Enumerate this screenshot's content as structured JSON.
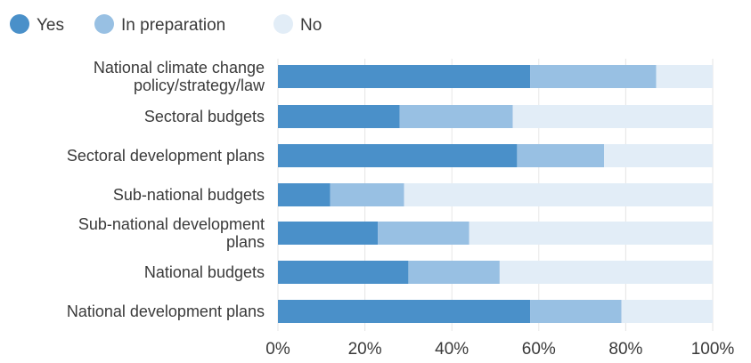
{
  "chart_data": {
    "type": "bar",
    "orientation": "horizontal",
    "stacked": true,
    "categories": [
      [
        "National climate change",
        "policy/strategy/law"
      ],
      [
        "Sectoral budgets"
      ],
      [
        "Sectoral development plans"
      ],
      [
        "Sub-national budgets"
      ],
      [
        "Sub-national development",
        "plans"
      ],
      [
        "National budgets"
      ],
      [
        "National development plans"
      ]
    ],
    "series": [
      {
        "name": "Yes",
        "color": "#4a90c9",
        "values": [
          58,
          28,
          55,
          12,
          23,
          30,
          58
        ]
      },
      {
        "name": "In preparation",
        "color": "#98c0e3",
        "values": [
          29,
          26,
          20,
          17,
          21,
          21,
          21
        ]
      },
      {
        "name": "No",
        "color": "#e2edf7",
        "values": [
          13,
          46,
          25,
          71,
          56,
          49,
          21
        ]
      }
    ],
    "xlim": [
      0,
      100
    ],
    "x_ticks": [
      "0%",
      "20%",
      "40%",
      "60%",
      "80%",
      "100%"
    ],
    "grid": true,
    "legend_position": "top-left"
  }
}
